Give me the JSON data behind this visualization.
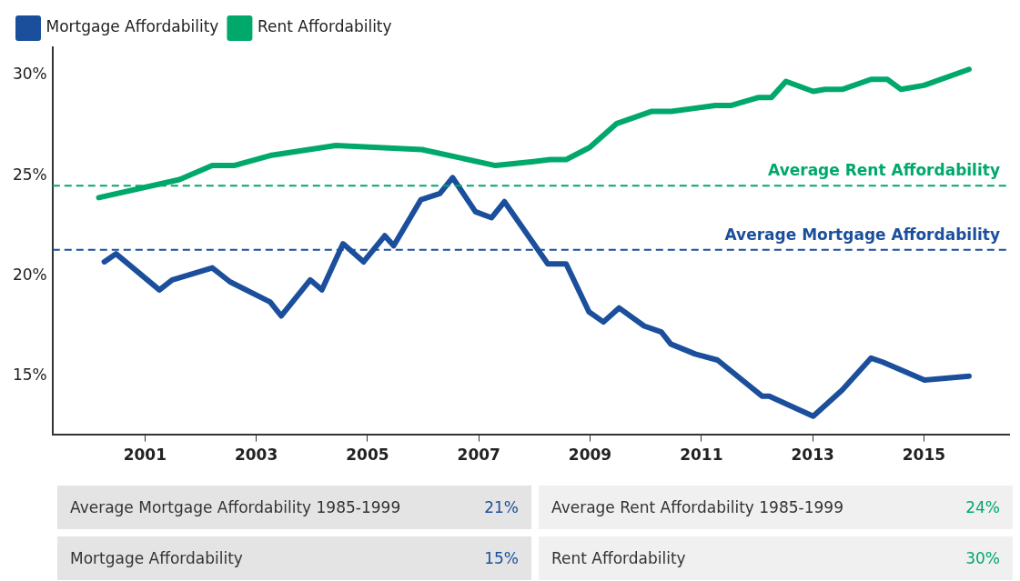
{
  "chart_data": {
    "type": "line",
    "legend": "top left",
    "grid": false,
    "xlim": [
      1999.34,
      2016.53
    ],
    "xticks": [
      2001,
      2003,
      2005,
      2007,
      2009,
      2011,
      2013,
      2015
    ],
    "ylim": [
      12.1,
      31.4
    ],
    "yticks": [
      {
        "value": 15,
        "label": "15%"
      },
      {
        "value": 20,
        "label": "20%"
      },
      {
        "value": 25,
        "label": "25%"
      },
      {
        "value": 30,
        "label": "30%"
      }
    ],
    "line_style": "solid",
    "marker": "none",
    "series": [
      {
        "name": "Mortgage Affordability",
        "color": "#1b4f9c",
        "x": [
          2000.27,
          2000.48,
          2001.26,
          2001.49,
          2002.21,
          2002.53,
          2003.25,
          2003.45,
          2003.97,
          2004.18,
          2004.56,
          2004.93,
          2005.31,
          2005.47,
          2005.96,
          2006.3,
          2006.53,
          2006.94,
          2007.23,
          2007.46,
          2008.24,
          2008.57,
          2008.98,
          2009.24,
          2009.52,
          2009.97,
          2010.28,
          2010.45,
          2010.89,
          2011.29,
          2012.09,
          2012.22,
          2013.01,
          2013.53,
          2014.05,
          2014.26,
          2015.01,
          2015.81
        ],
        "values": [
          20.7,
          21.1,
          19.3,
          19.8,
          20.4,
          19.7,
          18.7,
          18.0,
          19.8,
          19.3,
          21.6,
          20.7,
          22.0,
          21.5,
          23.8,
          24.1,
          24.9,
          23.2,
          22.9,
          23.7,
          20.6,
          20.6,
          18.2,
          17.7,
          18.4,
          17.5,
          17.2,
          16.6,
          16.1,
          15.8,
          14.0,
          14.0,
          13.0,
          14.3,
          15.9,
          15.7,
          14.8,
          15.0
        ]
      },
      {
        "name": "Rent Affordability",
        "color": "#00a86b",
        "x": [
          2000.17,
          2001.62,
          2002.21,
          2002.6,
          2003.25,
          2004.43,
          2005.98,
          2007.3,
          2007.98,
          2008.28,
          2008.57,
          2008.99,
          2009.48,
          2010.1,
          2010.46,
          2011.25,
          2011.54,
          2012.03,
          2012.26,
          2012.52,
          2013.01,
          2013.22,
          2013.53,
          2014.05,
          2014.34,
          2014.59,
          2015.0,
          2015.81
        ],
        "values": [
          23.9,
          24.8,
          25.5,
          25.5,
          26.0,
          26.5,
          26.3,
          25.5,
          25.7,
          25.8,
          25.8,
          26.4,
          27.6,
          28.2,
          28.2,
          28.5,
          28.5,
          28.9,
          28.9,
          29.7,
          29.2,
          29.3,
          29.3,
          29.8,
          29.8,
          29.3,
          29.5,
          30.3
        ]
      }
    ],
    "ref_lines": [
      {
        "axis": "y",
        "value": 24.5,
        "label": "Average Rent Affordability",
        "color": "#00a86b",
        "line_style": "dashed"
      },
      {
        "axis": "y",
        "value": 21.3,
        "label": "Average Mortgage Affordability",
        "color": "#1b4f9c",
        "line_style": "dashed"
      }
    ],
    "annotations": [
      "Average Mortgage Affordability 1985-1999",
      "21%",
      "Average Rent Affordability 1985-1999",
      "24%",
      "Mortgage Affordability",
      "15%",
      "Rent Affordability",
      "30%"
    ]
  }
}
